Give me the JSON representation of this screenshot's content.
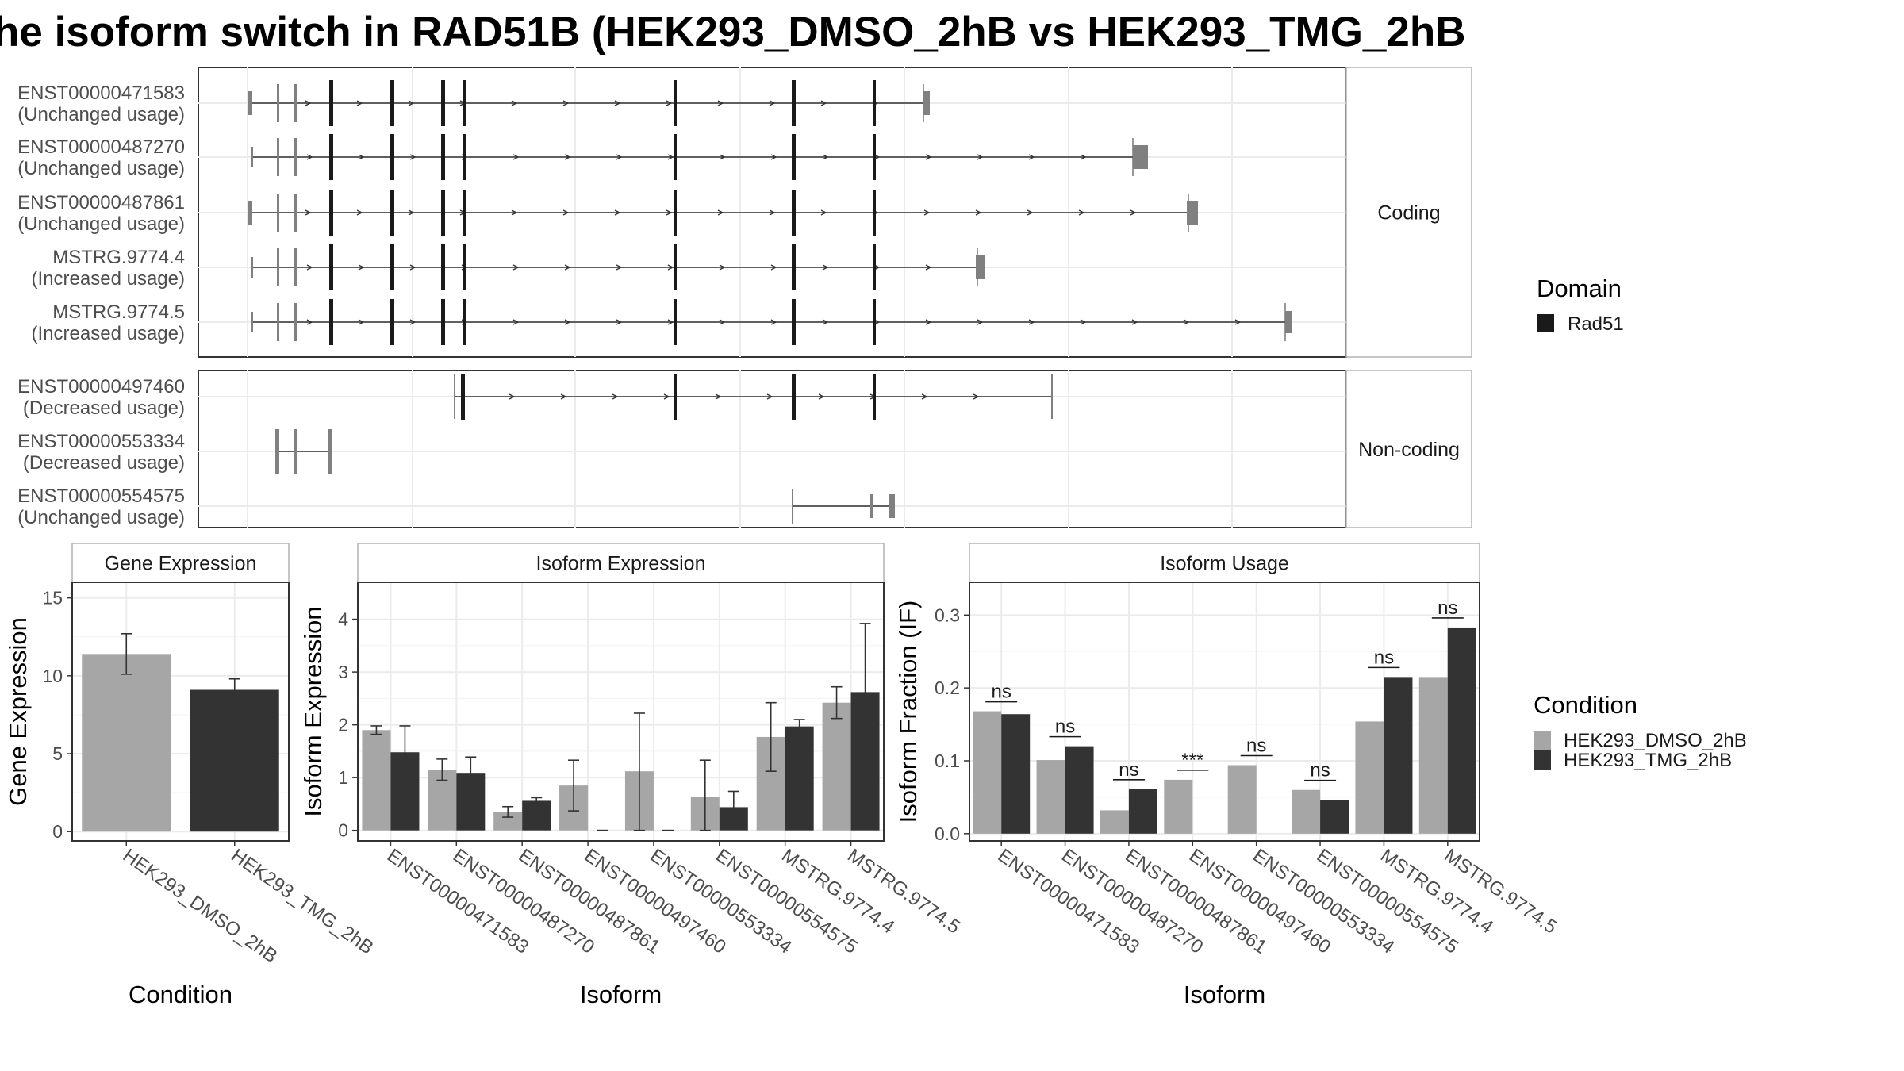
{
  "title": "he isoform switch in RAD51B (HEK293_DMSO_2hB vs HEK293_TMG_2hB",
  "colors": {
    "dmso": "#a6a6a6",
    "tmg": "#333333",
    "domain_rad51": "#1a1a1a",
    "utr": "#808080"
  },
  "legend_domain": {
    "title": "Domain",
    "items": [
      "Rad51"
    ]
  },
  "legend_condition": {
    "title": "Condition",
    "items": [
      "HEK293_DMSO_2hB",
      "HEK293_TMG_2hB"
    ]
  },
  "chart_data": [
    {
      "type": "gene-structure",
      "facets": [
        {
          "label": "Coding",
          "isoforms": [
            {
              "id": "ENST00000471583",
              "usage": "(Unchanged usage)"
            },
            {
              "id": "ENST00000487270",
              "usage": "(Unchanged usage)"
            },
            {
              "id": "ENST00000487861",
              "usage": "(Unchanged usage)"
            },
            {
              "id": "MSTRG.9774.4",
              "usage": "(Increased usage)"
            },
            {
              "id": "MSTRG.9774.5",
              "usage": "(Increased usage)"
            }
          ]
        },
        {
          "label": "Non-coding",
          "isoforms": [
            {
              "id": "ENST00000497460",
              "usage": "(Decreased usage)"
            },
            {
              "id": "ENST00000553334",
              "usage": "(Decreased usage)"
            },
            {
              "id": "ENST00000554575",
              "usage": "(Unchanged usage)"
            }
          ]
        }
      ]
    },
    {
      "type": "bar",
      "panel": "Gene Expression",
      "xlabel": "Condition",
      "ylabel": "Gene Expression",
      "ylim": [
        -0.6,
        16
      ],
      "yticks": [
        0,
        5,
        10,
        15
      ],
      "categories": [
        "HEK293_DMSO_2hB",
        "HEK293_TMG_2hB"
      ],
      "values": [
        11.4,
        9.1
      ],
      "errors": [
        [
          10.1,
          12.7
        ],
        [
          8.4,
          9.8
        ]
      ]
    },
    {
      "type": "bar",
      "panel": "Isoform Expression",
      "xlabel": "Isoform",
      "ylabel": "Isoform Expression",
      "ylim": [
        -0.2,
        4.7
      ],
      "yticks": [
        0,
        1,
        2,
        3,
        4
      ],
      "categories": [
        "ENST00000471583",
        "ENST00000487270",
        "ENST00000487861",
        "ENST00000497460",
        "ENST00000553334",
        "ENST00000554575",
        "MSTRG.9774.4",
        "MSTRG.9774.5"
      ],
      "series": [
        {
          "name": "HEK293_DMSO_2hB",
          "values": [
            1.9,
            1.15,
            0.35,
            0.85,
            1.12,
            0.63,
            1.77,
            2.42
          ],
          "errors": [
            [
              1.82,
              1.98
            ],
            [
              0.95,
              1.35
            ],
            [
              0.25,
              0.45
            ],
            [
              0.37,
              1.33
            ],
            [
              0.0,
              2.22
            ],
            [
              0.0,
              1.33
            ],
            [
              1.12,
              2.42
            ],
            [
              2.12,
              2.72
            ]
          ]
        },
        {
          "name": "HEK293_TMG_2hB",
          "values": [
            1.48,
            1.09,
            0.56,
            0.0,
            0.0,
            0.44,
            1.97,
            2.62
          ],
          "errors": [
            [
              0.97,
              1.98
            ],
            [
              0.79,
              1.39
            ],
            [
              0.5,
              0.62
            ],
            [
              0.0,
              0.0
            ],
            [
              0.0,
              0.0
            ],
            [
              0.14,
              0.74
            ],
            [
              1.84,
              2.1
            ],
            [
              1.32,
              3.92
            ]
          ]
        }
      ]
    },
    {
      "type": "bar",
      "panel": "Isoform Usage",
      "xlabel": "Isoform",
      "ylabel": "Isoform Fraction (IF)",
      "ylim": [
        -0.01,
        0.345
      ],
      "yticks": [
        "0.0",
        "0.1",
        "0.2",
        "0.3"
      ],
      "categories": [
        "ENST00000471583",
        "ENST00000487270",
        "ENST00000487861",
        "ENST00000497460",
        "ENST00000553334",
        "ENST00000554575",
        "MSTRG.9774.4",
        "MSTRG.9774.5"
      ],
      "series": [
        {
          "name": "HEK293_DMSO_2hB",
          "values": [
            0.168,
            0.101,
            0.032,
            0.074,
            0.094,
            0.06,
            0.154,
            0.215
          ]
        },
        {
          "name": "HEK293_TMG_2hB",
          "values": [
            0.164,
            0.12,
            0.061,
            0.0,
            0.0,
            0.046,
            0.215,
            0.283
          ]
        }
      ],
      "significance": [
        "ns",
        "ns",
        "ns",
        "***",
        "ns",
        "ns",
        "ns",
        "ns"
      ]
    }
  ]
}
